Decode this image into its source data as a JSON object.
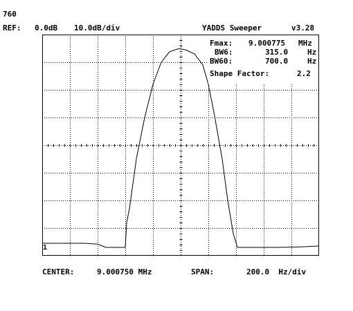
{
  "header": {
    "trace_id": "760",
    "ref_label": "REF:",
    "ref_value": "0.0dB",
    "scale_value": "10.0dB/div",
    "app_title": "YADDS Sweeper",
    "app_version": "v3.28"
  },
  "readout": {
    "fmax_label": "Fmax:",
    "fmax_value": "9.000775",
    "fmax_unit": "MHz",
    "bw6_label": "BW6:",
    "bw6_value": "315.0",
    "bw6_unit": "Hz",
    "bw60_label": "BW60:",
    "bw60_value": "700.0",
    "bw60_unit": "Hz",
    "shape_label": "Shape Factor:",
    "shape_value": "2.2"
  },
  "marker_label": "1",
  "footer": {
    "center_label": "CENTER:",
    "center_value": "9.000750 MHz",
    "span_label": "SPAN:",
    "span_value": "200.0  Hz/div"
  },
  "colors": {
    "trace": "#000000",
    "grid": "#000000",
    "background": "#ffffff"
  },
  "chart_data": {
    "type": "line",
    "title": "",
    "xlabel": "",
    "ylabel": "",
    "x_divisions": 10,
    "y_divisions": 8,
    "x_range_div": [
      -5,
      5
    ],
    "y_range_db": [
      -80,
      0
    ],
    "series": [
      {
        "x_div": [
          -5.0,
          -3.5,
          -3.0,
          -2.85,
          -2.7,
          -2.0,
          -1.95,
          -1.85,
          -1.6,
          -1.3,
          -1.0,
          -0.7,
          -0.4,
          -0.1,
          0.0,
          0.2,
          0.5,
          0.8,
          1.0,
          1.2,
          1.5,
          1.7,
          1.9,
          2.05,
          2.2,
          2.5,
          3.5,
          4.3,
          5.0
        ],
        "db": [
          -75.5,
          -75.5,
          -75.8,
          -76.4,
          -77.0,
          -77.0,
          -68.0,
          -63.0,
          -45.0,
          -30.0,
          -18.0,
          -10.0,
          -6.2,
          -5.2,
          -5.2,
          -5.6,
          -7.0,
          -11.0,
          -18.0,
          -28.0,
          -45.0,
          -60.0,
          -72.0,
          -77.0,
          -77.0,
          -77.0,
          -77.0,
          -76.8,
          -76.5
        ]
      }
    ]
  }
}
